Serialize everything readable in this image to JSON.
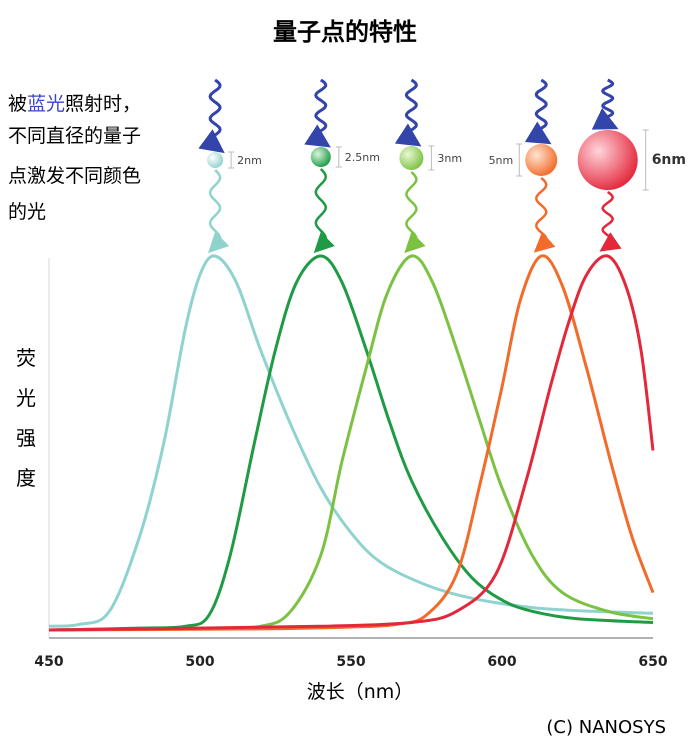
{
  "chart_data": {
    "type": "line",
    "title": "量子点的特性",
    "annotation": {
      "prefix": "被",
      "highlight": "蓝光",
      "line1_rest": "照射时，",
      "line2": "不同直径的量子",
      "line3": "点激发不同颜色",
      "line4": "的光"
    },
    "ylabel": [
      "荧",
      "光",
      "强",
      "度"
    ],
    "xlabel": "波长（nm）",
    "credit": "(C) NANOSYS",
    "xlim": [
      450,
      650
    ],
    "ylim": [
      0,
      1
    ],
    "x_ticks": [
      450,
      500,
      550,
      600,
      650
    ],
    "grid": false,
    "colors": {
      "blue_light": "#3344aa",
      "series": [
        "#8fd3cf",
        "#1f9a45",
        "#7cc242",
        "#f26b2a",
        "#e3283c"
      ]
    },
    "series": [
      {
        "peak": 505,
        "diameter": "2nm",
        "points": [
          [
            450,
            0.01
          ],
          [
            460,
            0.015
          ],
          [
            470,
            0.05
          ],
          [
            480,
            0.25
          ],
          [
            488,
            0.5
          ],
          [
            495,
            0.8
          ],
          [
            500,
            0.95
          ],
          [
            505,
            1.0
          ],
          [
            512,
            0.93
          ],
          [
            520,
            0.75
          ],
          [
            530,
            0.55
          ],
          [
            540,
            0.38
          ],
          [
            550,
            0.26
          ],
          [
            560,
            0.18
          ],
          [
            575,
            0.12
          ],
          [
            590,
            0.085
          ],
          [
            610,
            0.06
          ],
          [
            630,
            0.05
          ],
          [
            650,
            0.045
          ]
        ]
      },
      {
        "peak": 540,
        "diameter": "2.5nm",
        "points": [
          [
            450,
            0.0
          ],
          [
            480,
            0.005
          ],
          [
            495,
            0.01
          ],
          [
            503,
            0.04
          ],
          [
            510,
            0.2
          ],
          [
            518,
            0.5
          ],
          [
            525,
            0.75
          ],
          [
            532,
            0.93
          ],
          [
            540,
            1.0
          ],
          [
            547,
            0.93
          ],
          [
            555,
            0.75
          ],
          [
            563,
            0.55
          ],
          [
            570,
            0.4
          ],
          [
            580,
            0.25
          ],
          [
            590,
            0.14
          ],
          [
            600,
            0.08
          ],
          [
            610,
            0.05
          ],
          [
            625,
            0.03
          ],
          [
            650,
            0.02
          ]
        ]
      },
      {
        "peak": 570,
        "diameter": "3nm",
        "points": [
          [
            450,
            0.0
          ],
          [
            500,
            0.005
          ],
          [
            520,
            0.01
          ],
          [
            530,
            0.05
          ],
          [
            540,
            0.2
          ],
          [
            547,
            0.45
          ],
          [
            555,
            0.7
          ],
          [
            562,
            0.9
          ],
          [
            570,
            1.0
          ],
          [
            577,
            0.93
          ],
          [
            585,
            0.75
          ],
          [
            593,
            0.55
          ],
          [
            600,
            0.38
          ],
          [
            610,
            0.2
          ],
          [
            620,
            0.1
          ],
          [
            635,
            0.05
          ],
          [
            650,
            0.03
          ]
        ]
      },
      {
        "peak": 613,
        "diameter": "5nm",
        "points": [
          [
            450,
            0.0
          ],
          [
            520,
            0.003
          ],
          [
            550,
            0.008
          ],
          [
            565,
            0.015
          ],
          [
            575,
            0.04
          ],
          [
            585,
            0.15
          ],
          [
            593,
            0.4
          ],
          [
            600,
            0.65
          ],
          [
            606,
            0.88
          ],
          [
            613,
            1.0
          ],
          [
            620,
            0.92
          ],
          [
            628,
            0.7
          ],
          [
            636,
            0.45
          ],
          [
            643,
            0.25
          ],
          [
            650,
            0.1
          ]
        ]
      },
      {
        "peak": 635,
        "diameter": "6nm",
        "points": [
          [
            450,
            0.0
          ],
          [
            500,
            0.005
          ],
          [
            540,
            0.01
          ],
          [
            570,
            0.02
          ],
          [
            585,
            0.05
          ],
          [
            598,
            0.15
          ],
          [
            608,
            0.4
          ],
          [
            616,
            0.65
          ],
          [
            622,
            0.82
          ],
          [
            628,
            0.95
          ],
          [
            635,
            1.0
          ],
          [
            641,
            0.92
          ],
          [
            646,
            0.75
          ],
          [
            650,
            0.48
          ]
        ]
      }
    ]
  }
}
